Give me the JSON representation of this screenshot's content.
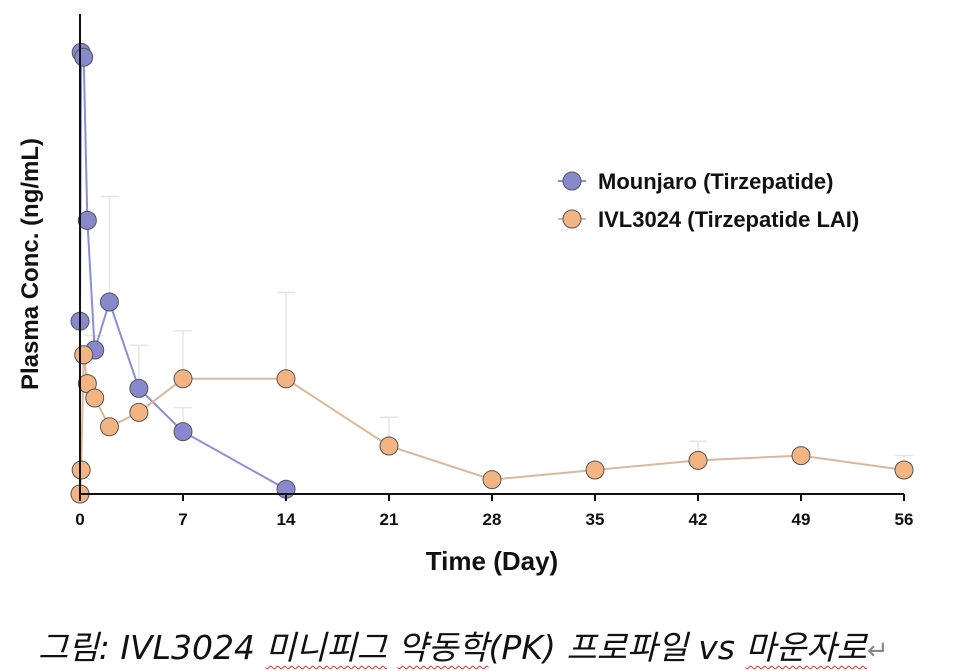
{
  "chart_data": {
    "type": "line",
    "xlabel": "Time (Day)",
    "ylabel": "Plasma Conc. (ng/mL)",
    "xticks": [
      0,
      7,
      14,
      21,
      28,
      35,
      42,
      49,
      56
    ],
    "xlim": [
      0,
      56
    ],
    "ylim": [
      0,
      100
    ],
    "y_tick_labels_shown": false,
    "grid": false,
    "legend_position": "top-right",
    "series": [
      {
        "name": "Mounjaro (Tirzepatide)",
        "color": "#8888cc",
        "line_color": "#8a8fd6",
        "x": [
          0,
          0.08,
          0.25,
          0.5,
          1,
          2,
          4,
          7,
          14
        ],
        "y": [
          36,
          92,
          91,
          57,
          30,
          40,
          22,
          13,
          1
        ],
        "error": [
          0,
          0,
          0,
          0,
          3,
          22,
          9,
          5,
          0
        ]
      },
      {
        "name": "IVL3024 (Tirzepatide LAI)",
        "color": "#f2b482",
        "line_color": "#d9b89b",
        "x": [
          0,
          0.08,
          0.25,
          0.5,
          1,
          2,
          4,
          7,
          14,
          21,
          28,
          35,
          42,
          49,
          56
        ],
        "y": [
          0,
          5,
          29,
          23,
          20,
          14,
          17,
          24,
          24,
          10,
          3,
          5,
          7,
          8,
          5
        ],
        "error": [
          0,
          0,
          0,
          0,
          0,
          0,
          0,
          10,
          18,
          6,
          0,
          0,
          4,
          0,
          3
        ]
      }
    ]
  },
  "caption": {
    "prefix": "그림: IVL3024 ",
    "word1": "미니피그",
    "space1": " ",
    "word2": "약동학",
    "middle": "(PK) 프로파일 vs ",
    "word3": "마운자로",
    "return_mark": "↵"
  }
}
